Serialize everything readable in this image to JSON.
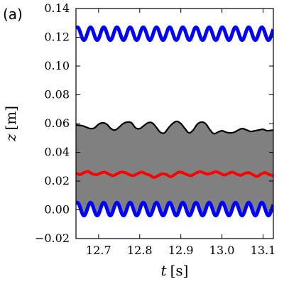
{
  "panel_label": "(a)",
  "chart_data": {
    "type": "line",
    "xlabel": "t [s]",
    "xlabel_var": "t",
    "xlabel_unit": "[s]",
    "ylabel": "z [m]",
    "ylabel_var": "z",
    "ylabel_unit": "[m]",
    "xlim": [
      12.645,
      13.125
    ],
    "ylim": [
      -0.02,
      0.14
    ],
    "xticks": [
      12.7,
      12.8,
      12.9,
      13.0,
      13.1
    ],
    "xtick_labels": [
      "12.7",
      "12.8",
      "12.9",
      "13.0",
      "13.1"
    ],
    "yticks": [
      -0.02,
      0.0,
      0.02,
      0.04,
      0.06,
      0.08,
      0.1,
      0.12,
      0.14
    ],
    "ytick_labels": [
      "−0.02",
      "0.00",
      "0.02",
      "0.04",
      "0.06",
      "0.08",
      "0.10",
      "0.12",
      "0.14"
    ],
    "grid": false,
    "legend": "none",
    "series": [
      {
        "role": "upper_oscillation",
        "color": "#0000ff",
        "mean": 0.1225,
        "amplitude": 0.0045,
        "frequency_hz": 31.2,
        "phase": 0.9
      },
      {
        "role": "lower_oscillation",
        "color": "#0000ff",
        "mean": 0.0005,
        "amplitude": 0.0045,
        "frequency_hz": 31.2,
        "phase": 0.9
      },
      {
        "role": "band_upper_edge",
        "color": "#000000",
        "x": [
          12.645,
          12.66,
          12.67,
          12.68,
          12.69,
          12.7,
          12.71,
          12.72,
          12.73,
          12.74,
          12.75,
          12.76,
          12.77,
          12.78,
          12.79,
          12.8,
          12.81,
          12.82,
          12.83,
          12.84,
          12.85,
          12.86,
          12.87,
          12.88,
          12.89,
          12.9,
          12.91,
          12.92,
          12.93,
          12.94,
          12.95,
          12.96,
          12.97,
          12.98,
          12.99,
          13.0,
          13.01,
          13.02,
          13.03,
          13.04,
          13.05,
          13.06,
          13.07,
          13.08,
          13.09,
          13.1,
          13.11,
          13.125
        ],
        "y": [
          0.059,
          0.0585,
          0.0575,
          0.0565,
          0.057,
          0.0595,
          0.0605,
          0.0595,
          0.0565,
          0.0555,
          0.0575,
          0.06,
          0.061,
          0.0605,
          0.057,
          0.0565,
          0.0585,
          0.0605,
          0.0605,
          0.0575,
          0.054,
          0.0535,
          0.057,
          0.06,
          0.0615,
          0.06,
          0.0565,
          0.0535,
          0.0555,
          0.0595,
          0.061,
          0.06,
          0.056,
          0.053,
          0.054,
          0.055,
          0.054,
          0.0535,
          0.054,
          0.0555,
          0.0565,
          0.0555,
          0.0545,
          0.055,
          0.0555,
          0.056,
          0.055,
          0.0555
        ]
      },
      {
        "role": "band_lower_edge",
        "color": "#000000",
        "mean": 0.0005,
        "amplitude": 0.0045,
        "frequency_hz": 31.2,
        "phase": 0.9
      },
      {
        "role": "mid_oscillation",
        "color": "#ff0000",
        "x": [
          12.645,
          12.655,
          12.665,
          12.675,
          12.685,
          12.695,
          12.705,
          12.715,
          12.725,
          12.735,
          12.745,
          12.755,
          12.765,
          12.775,
          12.785,
          12.795,
          12.805,
          12.815,
          12.825,
          12.835,
          12.845,
          12.855,
          12.865,
          12.875,
          12.885,
          12.895,
          12.905,
          12.915,
          12.925,
          12.935,
          12.945,
          12.955,
          12.965,
          12.975,
          12.985,
          12.995,
          13.005,
          13.015,
          13.025,
          13.035,
          13.045,
          13.055,
          13.065,
          13.075,
          13.085,
          13.095,
          13.105,
          13.115,
          13.125
        ],
        "y": [
          0.0255,
          0.0245,
          0.026,
          0.0265,
          0.025,
          0.0245,
          0.0255,
          0.0262,
          0.0248,
          0.0238,
          0.025,
          0.0262,
          0.0258,
          0.0245,
          0.0238,
          0.0252,
          0.0262,
          0.025,
          0.024,
          0.0225,
          0.0238,
          0.025,
          0.0245,
          0.023,
          0.0245,
          0.0262,
          0.0258,
          0.0245,
          0.0238,
          0.0252,
          0.0265,
          0.0258,
          0.0248,
          0.0255,
          0.0265,
          0.0255,
          0.0242,
          0.0252,
          0.0262,
          0.025,
          0.024,
          0.0252,
          0.0258,
          0.0245,
          0.0232,
          0.0248,
          0.0258,
          0.0245,
          0.0238
        ]
      }
    ],
    "band_fill_color": "#808080"
  }
}
